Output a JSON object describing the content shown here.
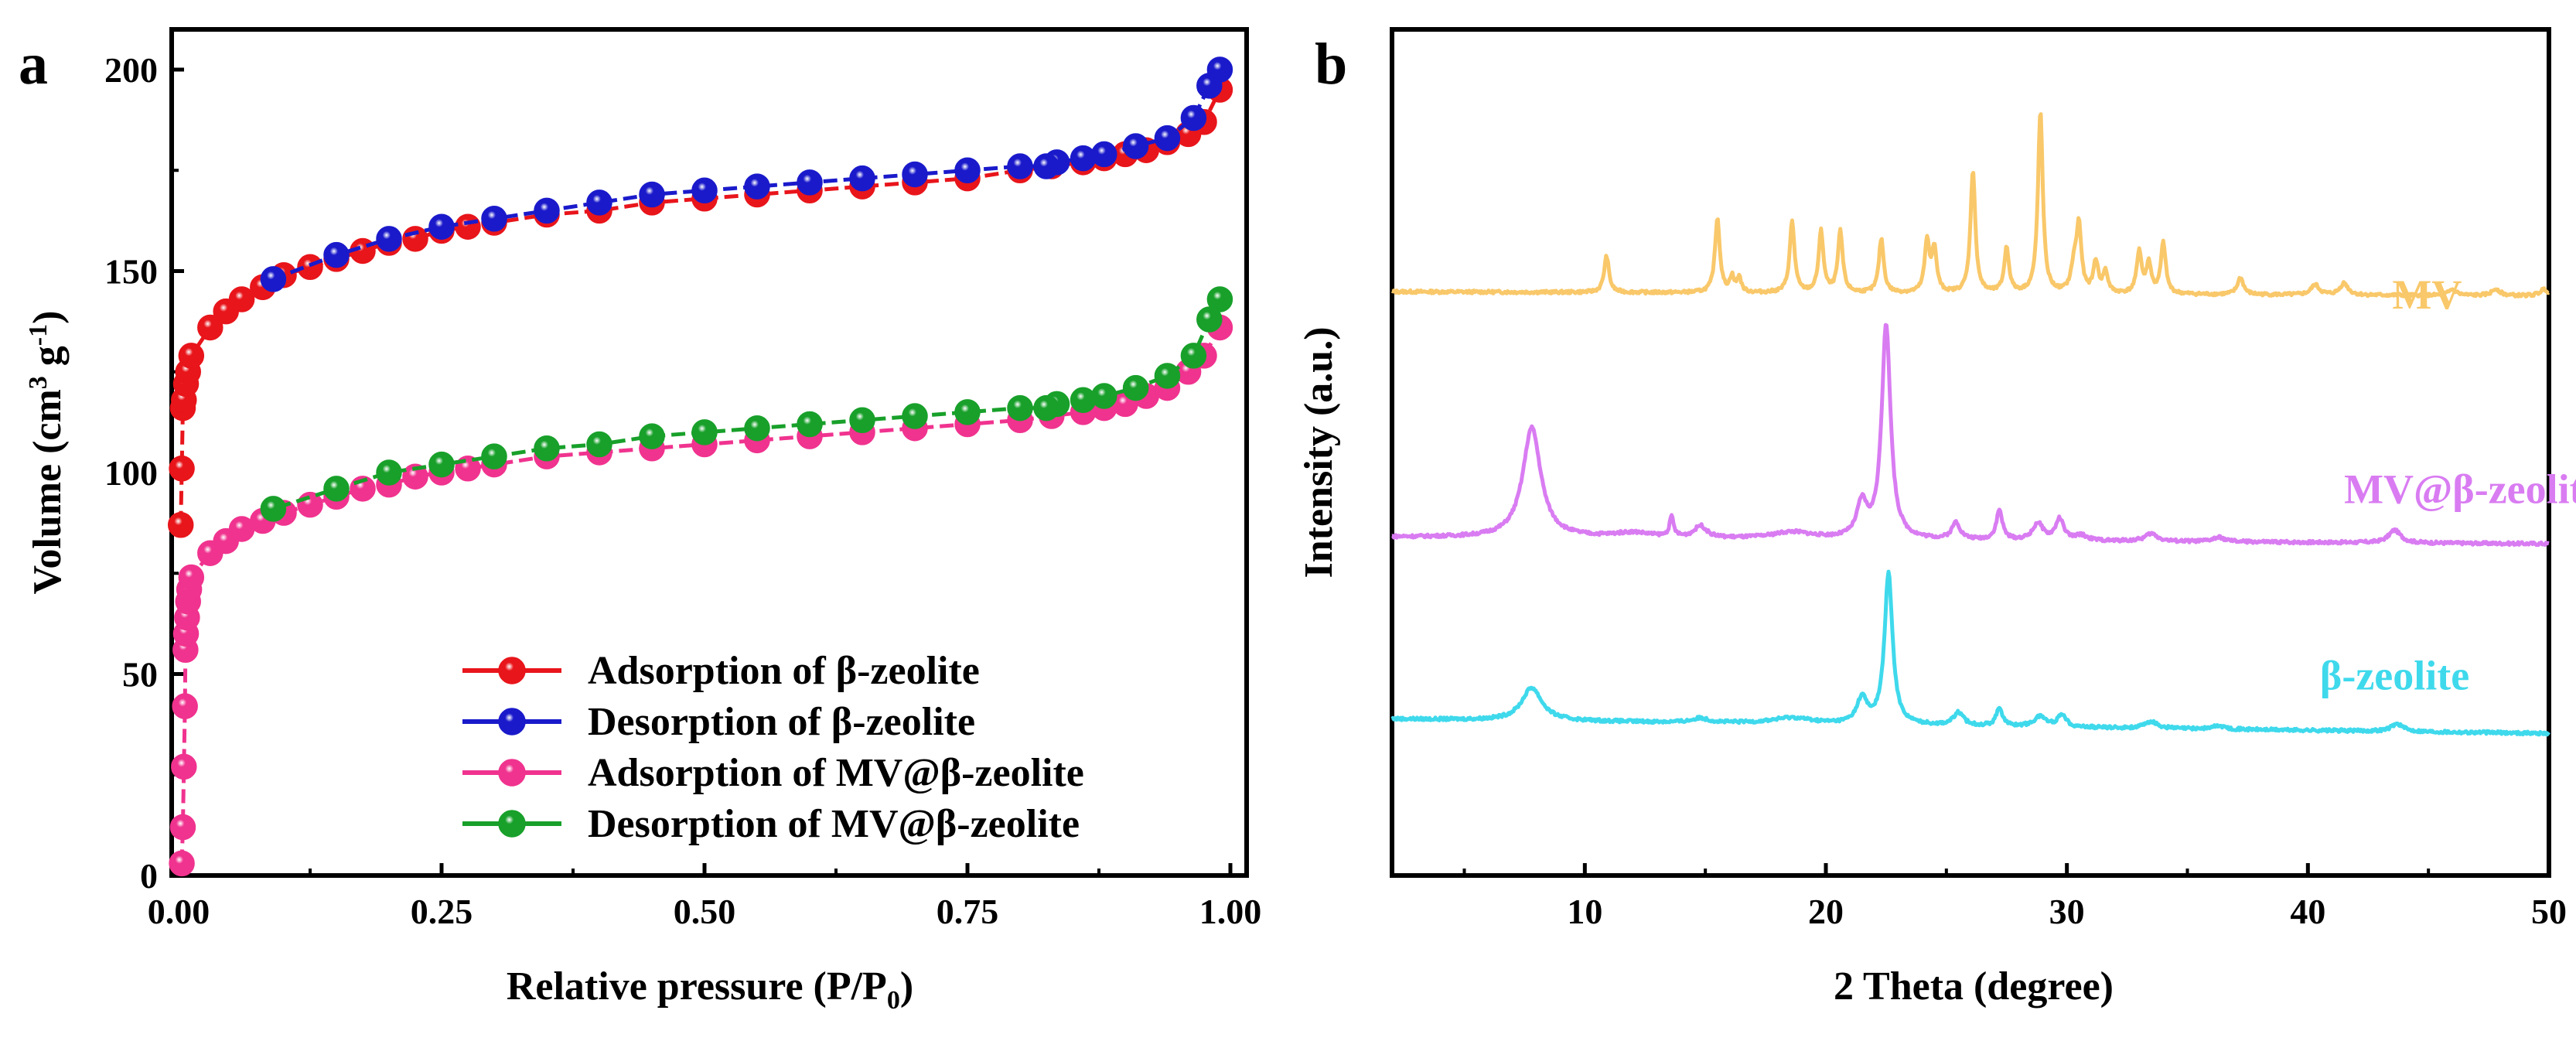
{
  "chart_data": [
    {
      "panel": "a",
      "type": "scatter",
      "xlabel": "Relative pressure (P/P",
      "xlabel_sub": "0",
      "xlabel_end": ")",
      "ylabel": "Volume (cm",
      "ylabel_sup1": "3",
      "ylabel_mid": " g",
      "ylabel_sup2": "-1",
      "ylabel_end": ")",
      "xlim": [
        0,
        1
      ],
      "ylim": [
        0,
        210
      ],
      "xticks": [
        "0.00",
        "0.25",
        "0.50",
        "0.75",
        "1.00"
      ],
      "xtick_values": [
        0,
        0.25,
        0.5,
        0.75,
        1
      ],
      "yticks": [
        "0",
        "50",
        "100",
        "150",
        "200"
      ],
      "ytick_values": [
        0,
        50,
        100,
        150,
        200
      ],
      "legend_position": "bottom-right",
      "series": [
        {
          "name": "Adsorption of β-zeolite",
          "color": "#e8151b",
          "x": [
            0.002,
            0.003,
            0.004,
            0.005,
            0.007,
            0.009,
            0.012,
            0.03,
            0.045,
            0.06,
            0.08,
            0.1,
            0.125,
            0.15,
            0.175,
            0.2,
            0.225,
            0.25,
            0.275,
            0.3,
            0.35,
            0.4,
            0.45,
            0.5,
            0.55,
            0.6,
            0.65,
            0.7,
            0.75,
            0.8,
            0.83,
            0.86,
            0.88,
            0.9,
            0.92,
            0.94,
            0.96,
            0.975,
            0.99
          ],
          "y": [
            87,
            101,
            116,
            118,
            122,
            125,
            129,
            136,
            140,
            143,
            146,
            149,
            151,
            153,
            155,
            157,
            158,
            160,
            161,
            162,
            164,
            165,
            167,
            168,
            169,
            170,
            171,
            172,
            173,
            175,
            176,
            177,
            178,
            179,
            180,
            182,
            184,
            187,
            195
          ]
        },
        {
          "name": "Desorption of β-zeolite",
          "color": "#1a1acb",
          "x": [
            0.99,
            0.98,
            0.965,
            0.94,
            0.91,
            0.88,
            0.86,
            0.835,
            0.825,
            0.8,
            0.75,
            0.7,
            0.65,
            0.6,
            0.55,
            0.5,
            0.45,
            0.4,
            0.35,
            0.3,
            0.25,
            0.2,
            0.15,
            0.09
          ],
          "y": [
            200,
            196,
            188,
            183,
            181,
            179,
            178,
            177,
            176,
            176,
            175,
            174,
            173,
            172,
            171,
            170,
            169,
            167,
            165,
            163,
            161,
            158,
            154,
            148
          ]
        },
        {
          "name": "Adsorption of MV@β-zeolite",
          "color": "#f0338f",
          "x": [
            0.003,
            0.004,
            0.005,
            0.006,
            0.0065,
            0.007,
            0.008,
            0.009,
            0.01,
            0.012,
            0.03,
            0.045,
            0.06,
            0.08,
            0.1,
            0.125,
            0.15,
            0.175,
            0.2,
            0.225,
            0.25,
            0.275,
            0.3,
            0.35,
            0.4,
            0.45,
            0.5,
            0.55,
            0.6,
            0.65,
            0.7,
            0.75,
            0.8,
            0.83,
            0.86,
            0.88,
            0.9,
            0.92,
            0.94,
            0.96,
            0.975,
            0.99
          ],
          "y": [
            3,
            12,
            27,
            42,
            56,
            60,
            64,
            68,
            71,
            74,
            80,
            83,
            86,
            88,
            90,
            92,
            94,
            96,
            97,
            99,
            100,
            101,
            102,
            104,
            105,
            106,
            107,
            108,
            109,
            110,
            111,
            112,
            113,
            114,
            115,
            116,
            117,
            119,
            121,
            125,
            129,
            136
          ]
        },
        {
          "name": "Desorption of MV@β-zeolite",
          "color": "#18a02a",
          "x": [
            0.99,
            0.98,
            0.965,
            0.94,
            0.91,
            0.88,
            0.86,
            0.835,
            0.825,
            0.8,
            0.75,
            0.7,
            0.65,
            0.6,
            0.55,
            0.5,
            0.45,
            0.4,
            0.35,
            0.3,
            0.25,
            0.2,
            0.15,
            0.09
          ],
          "y": [
            143,
            138,
            129,
            124,
            121,
            119,
            118,
            117,
            116,
            116,
            115,
            114,
            113,
            112,
            111,
            110,
            109,
            107,
            106,
            104,
            102,
            100,
            96,
            91
          ]
        }
      ]
    },
    {
      "panel": "b",
      "type": "line",
      "xlabel": "2 Theta (degree)",
      "ylabel": "Intensity (a.u.)",
      "xlim": [
        2,
        50
      ],
      "ylim": [
        0,
        100
      ],
      "xticks": [
        "10",
        "20",
        "30",
        "40",
        "50"
      ],
      "xtick_values": [
        10,
        20,
        30,
        40,
        50
      ],
      "series": [
        {
          "name": "MV",
          "color": "#f9c86a",
          "baseline": [
            69,
            68.5
          ],
          "peaks": [
            [
              10.9,
              4.3,
              0.12
            ],
            [
              15.5,
              8.8,
              0.12
            ],
            [
              16.1,
              1.8,
              0.1
            ],
            [
              16.4,
              1.8,
              0.1
            ],
            [
              18.6,
              8.4,
              0.12
            ],
            [
              19.8,
              7.2,
              0.12
            ],
            [
              20.6,
              7.2,
              0.12
            ],
            [
              22.3,
              6.4,
              0.12
            ],
            [
              24.2,
              6,
              0.12
            ],
            [
              24.5,
              5,
              0.12
            ],
            [
              26.1,
              14.5,
              0.12
            ],
            [
              27.5,
              5.3,
              0.12
            ],
            [
              28.9,
              21.5,
              0.12
            ],
            [
              30.3,
              3,
              0.15
            ],
            [
              30.5,
              7.6,
              0.12
            ],
            [
              31.2,
              3.7,
              0.12
            ],
            [
              31.6,
              2.5,
              0.12
            ],
            [
              33.0,
              5,
              0.12
            ],
            [
              33.4,
              3.5,
              0.12
            ],
            [
              34.0,
              6,
              0.12
            ],
            [
              37.2,
              2,
              0.15
            ],
            [
              40.3,
              1.2,
              0.2
            ],
            [
              41.5,
              1.4,
              0.2
            ],
            [
              46,
              0.7,
              0.2
            ],
            [
              47.8,
              0.8,
              0.2
            ],
            [
              49.8,
              0.8,
              0.2
            ]
          ]
        },
        {
          "name": "MV@β-zeolite",
          "color": "#d97cf2",
          "baseline": [
            40,
            39.2
          ],
          "peaks": [
            [
              7.8,
              13,
              0.45
            ],
            [
              12,
              0.6,
              1
            ],
            [
              13.6,
              2.3,
              0.1
            ],
            [
              14.8,
              1.4,
              0.3
            ],
            [
              18.6,
              0.8,
              1
            ],
            [
              21.5,
              4,
              0.25
            ],
            [
              22.5,
              25.4,
              0.22
            ],
            [
              25.4,
              2,
              0.2
            ],
            [
              27.2,
              3.5,
              0.15
            ],
            [
              28.8,
              2,
              0.25
            ],
            [
              29.7,
              2.5,
              0.2
            ],
            [
              30.6,
              0.6,
              0.3
            ],
            [
              33.5,
              0.9,
              0.3
            ],
            [
              36.3,
              0.5,
              0.3
            ],
            [
              43.6,
              1.5,
              0.3
            ]
          ]
        },
        {
          "name": "β-zeolite",
          "color": "#3fd9ec",
          "baseline": [
            18.5,
            16.8
          ],
          "peaks": [
            [
              7.8,
              3.9,
              0.5
            ],
            [
              14.8,
              0.5,
              0.4
            ],
            [
              18.6,
              0.7,
              1
            ],
            [
              21.5,
              3,
              0.25
            ],
            [
              22.6,
              17.8,
              0.2
            ],
            [
              25.5,
              1.5,
              0.25
            ],
            [
              27.2,
              2.2,
              0.15
            ],
            [
              28.9,
              1.2,
              0.3
            ],
            [
              29.8,
              1.5,
              0.2
            ],
            [
              33.5,
              0.8,
              0.3
            ],
            [
              36.3,
              0.4,
              0.3
            ],
            [
              43.7,
              0.9,
              0.3
            ]
          ]
        }
      ]
    }
  ]
}
